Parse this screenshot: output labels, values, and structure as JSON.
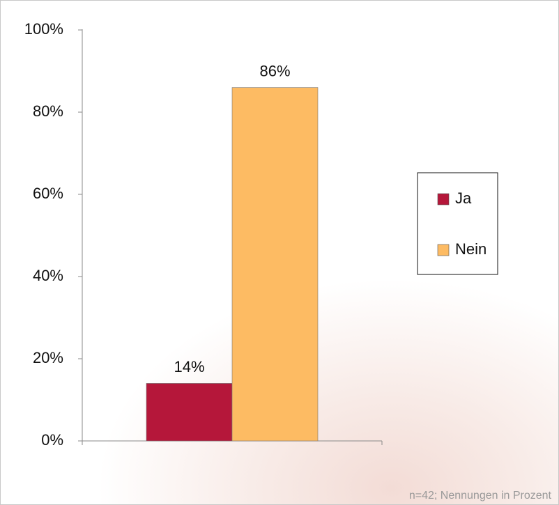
{
  "chart_data": {
    "type": "bar",
    "categories": [
      null
    ],
    "series": [
      {
        "name": "Ja",
        "color": "#b5173a",
        "values": [
          14
        ],
        "value_labels": [
          "14%"
        ]
      },
      {
        "name": "Nein",
        "color": "#fdbb63",
        "values": [
          86
        ],
        "value_labels": [
          "86%"
        ]
      }
    ],
    "ylim": [
      0,
      100
    ],
    "yticks": [
      {
        "value": 0,
        "label": "0%"
      },
      {
        "value": 20,
        "label": "20%"
      },
      {
        "value": 40,
        "label": "40%"
      },
      {
        "value": 60,
        "label": "60%"
      },
      {
        "value": 80,
        "label": "80%"
      },
      {
        "value": 100,
        "label": "100%"
      }
    ],
    "grid": false,
    "legend": "right",
    "footnote": "n=42; Nennungen in Prozent"
  }
}
